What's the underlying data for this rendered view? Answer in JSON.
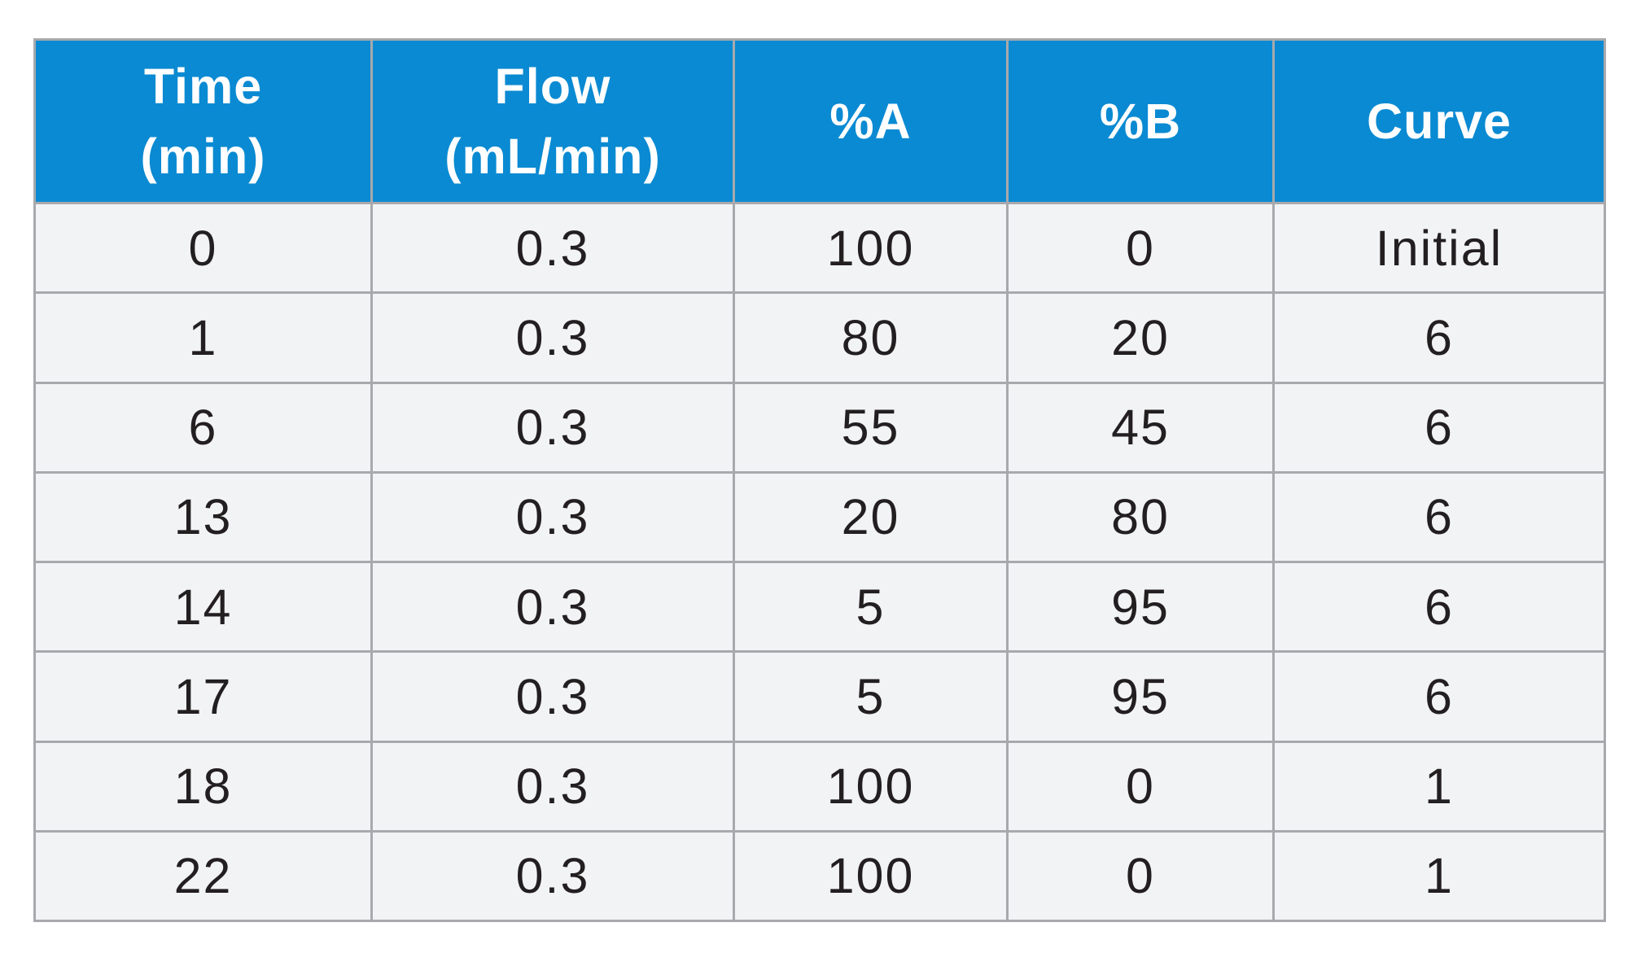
{
  "table": {
    "colors": {
      "header_bg": "#0a8ad2",
      "header_text": "#ffffff",
      "cell_bg": "#f2f3f5",
      "cell_text": "#231f20",
      "border": "#a7a9ac"
    },
    "headers": [
      [
        "Time",
        "(min)"
      ],
      [
        "Flow",
        "(mL/min)"
      ],
      [
        "%A"
      ],
      [
        "%B"
      ],
      [
        "Curve"
      ]
    ],
    "rows": [
      [
        "0",
        "0.3",
        "100",
        "0",
        "Initial"
      ],
      [
        "1",
        "0.3",
        "80",
        "20",
        "6"
      ],
      [
        "6",
        "0.3",
        "55",
        "45",
        "6"
      ],
      [
        "13",
        "0.3",
        "20",
        "80",
        "6"
      ],
      [
        "14",
        "0.3",
        "5",
        "95",
        "6"
      ],
      [
        "17",
        "0.3",
        "5",
        "95",
        "6"
      ],
      [
        "18",
        "0.3",
        "100",
        "0",
        "1"
      ],
      [
        "22",
        "0.3",
        "100",
        "0",
        "1"
      ]
    ]
  }
}
